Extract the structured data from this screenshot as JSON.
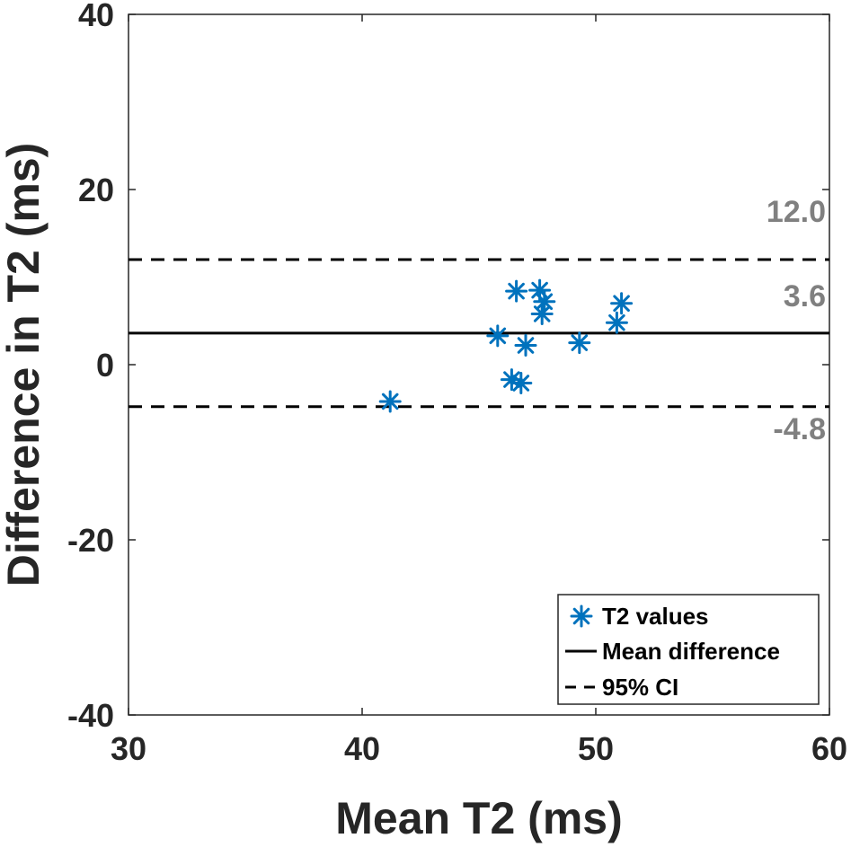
{
  "chart_data": {
    "type": "scatter",
    "title": "",
    "xlabel": "Mean T2 (ms)",
    "ylabel": "Difference in T2 (ms)",
    "xlim": [
      30,
      60
    ],
    "ylim": [
      -40,
      40
    ],
    "xticks": [
      30,
      40,
      50,
      60
    ],
    "yticks": [
      -40,
      -20,
      0,
      20,
      40
    ],
    "series": [
      {
        "name": "T2 values",
        "marker": "asterisk",
        "color": "#0072BD",
        "points": [
          {
            "x": 41.2,
            "y": -4.2
          },
          {
            "x": 45.8,
            "y": 3.3
          },
          {
            "x": 46.4,
            "y": -1.7
          },
          {
            "x": 46.6,
            "y": 8.4
          },
          {
            "x": 46.8,
            "y": -2.1
          },
          {
            "x": 47.0,
            "y": 2.2
          },
          {
            "x": 47.6,
            "y": 8.5
          },
          {
            "x": 47.7,
            "y": 5.8
          },
          {
            "x": 47.8,
            "y": 7.2
          },
          {
            "x": 49.3,
            "y": 2.5
          },
          {
            "x": 50.9,
            "y": 4.8
          },
          {
            "x": 51.1,
            "y": 7.0
          }
        ]
      }
    ],
    "reference_lines": [
      {
        "name": "Mean difference",
        "value": 3.6,
        "style": "solid",
        "color": "#000000",
        "label": "3.6"
      },
      {
        "name": "95% CI upper",
        "value": 12.0,
        "style": "dashed",
        "color": "#000000",
        "label": "12.0"
      },
      {
        "name": "95% CI lower",
        "value": -4.8,
        "style": "dashed",
        "color": "#000000",
        "label": "-4.8"
      }
    ],
    "legend": {
      "position": "bottom-right",
      "entries": [
        "T2 values",
        "Mean difference",
        "95% CI"
      ]
    },
    "grid": false
  }
}
